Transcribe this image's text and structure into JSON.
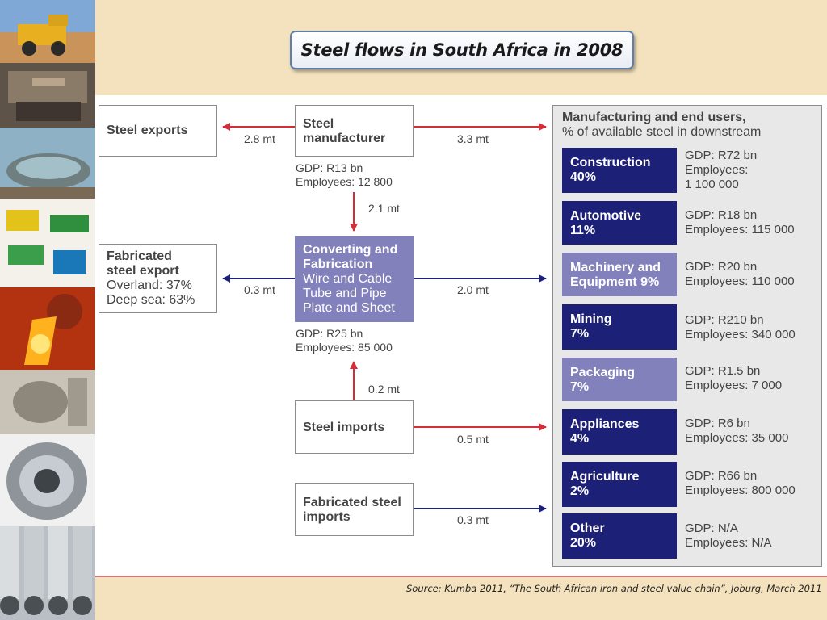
{
  "title": "Steel flows in South Africa in 2008",
  "source": "Source: Kumba 2011, “The South African iron and steel value chain”, Joburg, March 2011",
  "colors": {
    "red_arrow": "#d42e3a",
    "blue_arrow": "#1d2077",
    "dark_category": "#1d2077",
    "light_category": "#8281bc"
  },
  "nodes": {
    "steel_exports": {
      "lines": [
        "Steel exports"
      ]
    },
    "steel_manufacturer": {
      "lines": [
        "Steel",
        "manufacturer"
      ],
      "gdp": "GDP: R13 bn",
      "employees": "Employees: 12 800"
    },
    "fabricated_export": {
      "title_lines": [
        "Fabricated",
        "steel export"
      ],
      "lines": [
        "Overland: 37%",
        "Deep sea: 63%"
      ]
    },
    "converting": {
      "title_lines": [
        "Converting and",
        "Fabrication"
      ],
      "lines": [
        "Wire and Cable",
        "Tube and Pipe",
        "Plate and Sheet"
      ],
      "gdp": "GDP: R25 bn",
      "employees": "Employees: 85 000"
    },
    "steel_imports": {
      "lines": [
        "Steel imports"
      ]
    },
    "fabricated_imports": {
      "lines": [
        "Fabricated steel",
        "imports"
      ]
    }
  },
  "flows": {
    "manufacturer_to_exports": "2.8 mt",
    "manufacturer_to_end_users": "3.3 mt",
    "manufacturer_to_converting": "2.1 mt",
    "converting_to_fabricated_export": "0.3 mt",
    "converting_to_end_users": "2.0 mt",
    "imports_to_converting": "0.2 mt",
    "imports_to_end_users": "0.5 mt",
    "fabricated_imports_to_end_users": "0.3 mt"
  },
  "end_users": {
    "heading": "Manufacturing and end users,",
    "subheading": "% of available steel in downstream",
    "categories": [
      {
        "name": "Construction",
        "share": "40%",
        "gdp": "GDP: R72 bn",
        "employees_lines": [
          "Employees:",
          "1 100 000"
        ],
        "style": "dark"
      },
      {
        "name": "Automotive",
        "share": "11%",
        "gdp": "GDP: R18 bn",
        "employees_lines": [
          "Employees: 115 000"
        ],
        "style": "dark"
      },
      {
        "name": "Machinery and",
        "share": "Equipment 9%",
        "gdp": "GDP: R20 bn",
        "employees_lines": [
          "Employees: 110 000"
        ],
        "style": "light"
      },
      {
        "name": "Mining",
        "share": "7%",
        "gdp": "GDP: R210 bn",
        "employees_lines": [
          "Employees: 340 000"
        ],
        "style": "dark"
      },
      {
        "name": "Packaging",
        "share": "7%",
        "gdp": "GDP: R1.5 bn",
        "employees_lines": [
          "Employees: 7 000"
        ],
        "style": "light"
      },
      {
        "name": "Appliances",
        "share": "4%",
        "gdp": "GDP: R6 bn",
        "employees_lines": [
          "Employees: 35 000"
        ],
        "style": "dark"
      },
      {
        "name": "Agriculture",
        "share": "2%",
        "gdp": "GDP: R66 bn",
        "employees_lines": [
          "Employees: 800 000"
        ],
        "style": "dark"
      },
      {
        "name": "Other",
        "share": "20%",
        "gdp": "GDP: N/A",
        "employees_lines": [
          "Employees: N/A"
        ],
        "style": "dark"
      }
    ]
  }
}
